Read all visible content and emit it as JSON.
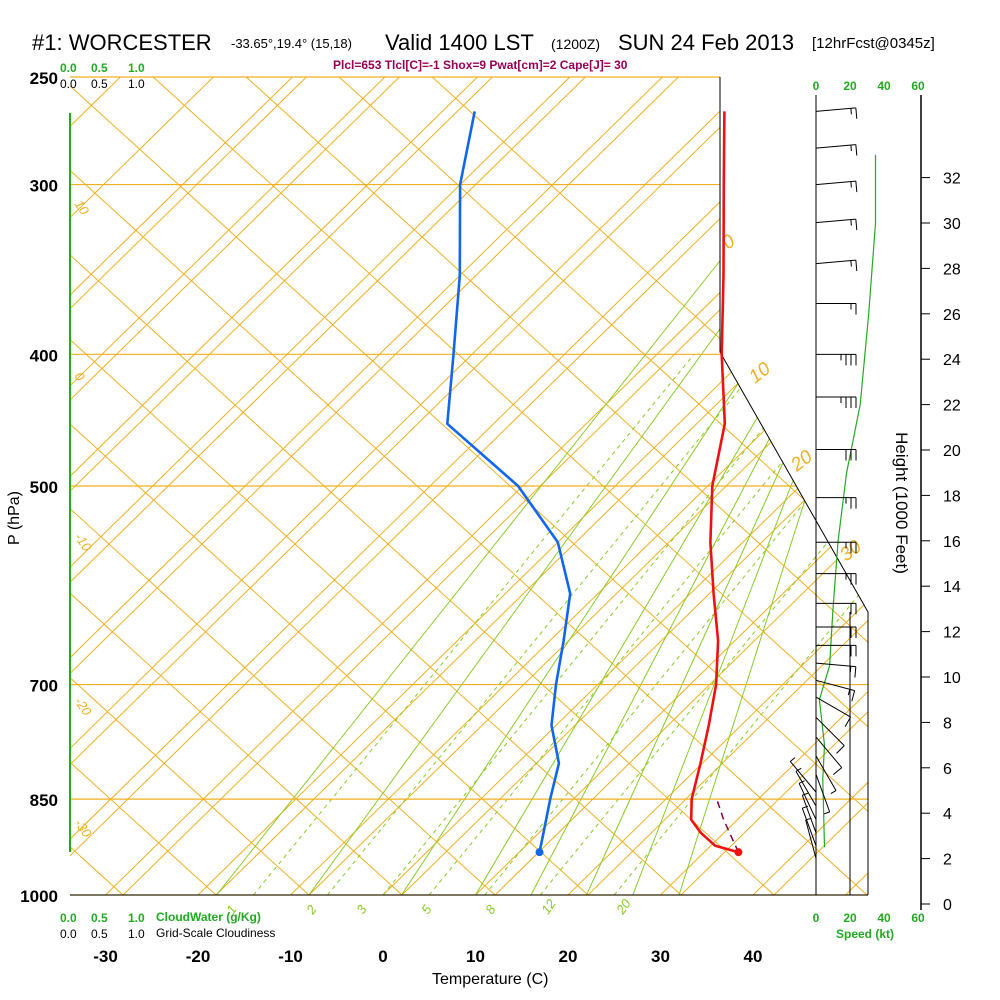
{
  "header": {
    "station": "#1: WORCESTER",
    "coords": "-33.65°,19.4° (15,18)",
    "valid": "Valid 1400 LST",
    "utc": "(1200Z)",
    "date": "SUN 24 Feb 2013",
    "forecast": "[12hrFcst@0345z]",
    "indices": "Plcl=653 Tlcl[C]=-1 Shox=9 Pwat[cm]=2 Cape[J]= 30"
  },
  "colors": {
    "isotherm": "#f0b020",
    "dry_adiabat": "#f0b020",
    "moist_adiabat": "#88cc22",
    "mixing_ratio": "#88cc22",
    "temperature": "#ee1111",
    "dewpoint": "#1166ee",
    "parcel": "#880044",
    "wind_speed": "#22aa22",
    "height": "#119911",
    "cloud": "#22aa22"
  },
  "chart_data": {
    "type": "skew-t log-p sounding",
    "xlabel": "Temperature (C)",
    "ylabel": "P (hPa)",
    "right_label": "Height (1000 Feet)",
    "xlim": [
      -35,
      37
    ],
    "ylim_hpa": [
      1000,
      250
    ],
    "x_ticks": [
      "-30",
      "-20",
      "-10",
      "0",
      "10",
      "20",
      "30",
      "40"
    ],
    "pressure_ticks": [
      {
        "p": 250,
        "label": "250"
      },
      {
        "p": 300,
        "label": "300"
      },
      {
        "p": 400,
        "label": "400"
      },
      {
        "p": 500,
        "label": "500"
      },
      {
        "p": 700,
        "label": "700"
      },
      {
        "p": 850,
        "label": "850"
      },
      {
        "p": 1000,
        "label": "1000"
      }
    ],
    "isotherm_labels": [
      {
        "t": -10,
        "text": "-10"
      },
      {
        "t": 0,
        "text": "0"
      },
      {
        "t": 10,
        "text": "10"
      },
      {
        "t": 20,
        "text": "20"
      },
      {
        "t": 30,
        "text": "30"
      }
    ],
    "side_labels": [
      {
        "p": 310,
        "text": "10"
      },
      {
        "p": 415,
        "text": "0"
      },
      {
        "p": 545,
        "text": "-10"
      },
      {
        "p": 720,
        "text": "-20"
      },
      {
        "p": 885,
        "text": "-30"
      }
    ],
    "mixing_ratio_labels": [
      "1",
      "2",
      "3",
      "5",
      "8",
      "12",
      "20"
    ],
    "cloud_scale": [
      "0.0",
      "0.5",
      "1.0"
    ],
    "cloud_water_label": "CloudWater (g/Kg)",
    "cloudiness_label": "Grid-Scale Cloudiness",
    "temperature": [
      {
        "p": 930,
        "t": 33.7
      },
      {
        "p": 920,
        "t": 30.5
      },
      {
        "p": 900,
        "t": 27.5
      },
      {
        "p": 880,
        "t": 25.0
      },
      {
        "p": 850,
        "t": 22.8
      },
      {
        "p": 800,
        "t": 19.8
      },
      {
        "p": 750,
        "t": 16.5
      },
      {
        "p": 700,
        "t": 12.8
      },
      {
        "p": 650,
        "t": 8.2
      },
      {
        "p": 600,
        "t": 2.5
      },
      {
        "p": 550,
        "t": -3.5
      },
      {
        "p": 500,
        "t": -9.5
      },
      {
        "p": 450,
        "t": -15.0
      },
      {
        "p": 400,
        "t": -23.0
      },
      {
        "p": 350,
        "t": -31.5
      },
      {
        "p": 300,
        "t": -41.5
      },
      {
        "p": 265,
        "t": -49.5
      }
    ],
    "dewpoint": [
      {
        "p": 930,
        "t": 12.2
      },
      {
        "p": 900,
        "t": 10.5
      },
      {
        "p": 850,
        "t": 7.5
      },
      {
        "p": 800,
        "t": 4.5
      },
      {
        "p": 750,
        "t": -0.5
      },
      {
        "p": 700,
        "t": -4.5
      },
      {
        "p": 650,
        "t": -8.5
      },
      {
        "p": 600,
        "t": -13.0
      },
      {
        "p": 550,
        "t": -20.0
      },
      {
        "p": 500,
        "t": -30.5
      },
      {
        "p": 450,
        "t": -45.0
      },
      {
        "p": 400,
        "t": -52.0
      },
      {
        "p": 350,
        "t": -60.0
      },
      {
        "p": 300,
        "t": -70.0
      },
      {
        "p": 265,
        "t": -76.5
      }
    ],
    "parcel_path": [
      {
        "p": 930,
        "t": 33.7
      },
      {
        "p": 880,
        "t": 28.5
      },
      {
        "p": 850,
        "t": 25.5
      }
    ],
    "surface_temperature": {
      "p": 930,
      "t": 33.7
    },
    "surface_dewpoint": {
      "p": 930,
      "t": 12.2
    },
    "height_ticks_kft": [
      0,
      2,
      4,
      6,
      8,
      10,
      12,
      14,
      16,
      18,
      20,
      22,
      24,
      26,
      28,
      30,
      32
    ],
    "speed_axis": {
      "label": "Speed (kt)",
      "ticks": [
        0,
        20,
        40,
        60
      ]
    },
    "wind_speed_profile": [
      {
        "h": 2.5,
        "s": 5
      },
      {
        "h": 5.5,
        "s": 4
      },
      {
        "h": 7.0,
        "s": 5
      },
      {
        "h": 9.0,
        "s": 2
      },
      {
        "h": 10.5,
        "s": 8
      },
      {
        "h": 13.0,
        "s": 10
      },
      {
        "h": 16.0,
        "s": 13
      },
      {
        "h": 19.0,
        "s": 18
      },
      {
        "h": 22.0,
        "s": 26
      },
      {
        "h": 26.0,
        "s": 31
      },
      {
        "h": 30.0,
        "s": 35
      },
      {
        "h": 33.0,
        "s": 35
      }
    ],
    "wind_barbs": [
      {
        "p": 265,
        "dir": 265,
        "spd": 15
      },
      {
        "p": 282,
        "dir": 265,
        "spd": 15
      },
      {
        "p": 300,
        "dir": 265,
        "spd": 15
      },
      {
        "p": 320,
        "dir": 265,
        "spd": 15
      },
      {
        "p": 343,
        "dir": 265,
        "spd": 15
      },
      {
        "p": 367,
        "dir": 270,
        "spd": 15
      },
      {
        "p": 400,
        "dir": 270,
        "spd": 35
      },
      {
        "p": 430,
        "dir": 270,
        "spd": 35
      },
      {
        "p": 470,
        "dir": 270,
        "spd": 30
      },
      {
        "p": 510,
        "dir": 270,
        "spd": 25
      },
      {
        "p": 550,
        "dir": 270,
        "spd": 25
      },
      {
        "p": 580,
        "dir": 270,
        "spd": 25
      },
      {
        "p": 610,
        "dir": 270,
        "spd": 20
      },
      {
        "p": 635,
        "dir": 270,
        "spd": 20
      },
      {
        "p": 655,
        "dir": 270,
        "spd": 20
      },
      {
        "p": 675,
        "dir": 275,
        "spd": 15
      },
      {
        "p": 695,
        "dir": 285,
        "spd": 15
      },
      {
        "p": 715,
        "dir": 300,
        "spd": 10
      },
      {
        "p": 740,
        "dir": 315,
        "spd": 10
      },
      {
        "p": 765,
        "dir": 320,
        "spd": 10
      },
      {
        "p": 790,
        "dir": 330,
        "spd": 5
      },
      {
        "p": 815,
        "dir": 340,
        "spd": 5
      },
      {
        "p": 840,
        "dir": 140,
        "spd": 5
      },
      {
        "p": 860,
        "dir": 150,
        "spd": 5
      },
      {
        "p": 880,
        "dir": 155,
        "spd": 5
      },
      {
        "p": 900,
        "dir": 160,
        "spd": 5
      },
      {
        "p": 920,
        "dir": 160,
        "spd": 5
      },
      {
        "p": 940,
        "dir": 165,
        "spd": 5
      }
    ]
  }
}
